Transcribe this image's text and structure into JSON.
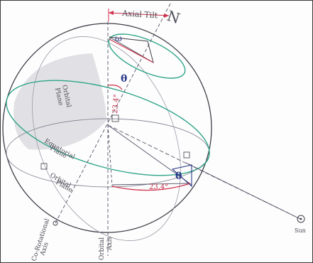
{
  "figure": {
    "labels": {
      "axial_tilt": "Axial Tilt",
      "top_axis": "N",
      "omega": "ω",
      "theta_upper": "θ",
      "angle_upper": "23.4°",
      "angle_lower": "23.4°",
      "theta_right": "θ",
      "orbital_plane_upper_line1": "Orbital",
      "orbital_plane_upper_line2": "Plane",
      "equatorial_plane_line1": "Equatorial",
      "equatorial_plane_line2": "Plane",
      "orbital_plane_lower_line1": "Orbital",
      "orbital_plane_lower_line2": "Plane",
      "orbital_axis_line1": "Orbital",
      "orbital_axis_line2": "Axis",
      "co_rotational_axis_line1": "Co-Rotational",
      "co_rotational_axis_line2": "Axis",
      "sun": "Sun"
    },
    "colors": {
      "pencil": "#5a5a66",
      "equator_green": "#2fa58a",
      "angle_red": "#d0304a",
      "angle_blue": "#2a3a8a",
      "shading": "#dcdce0"
    }
  }
}
